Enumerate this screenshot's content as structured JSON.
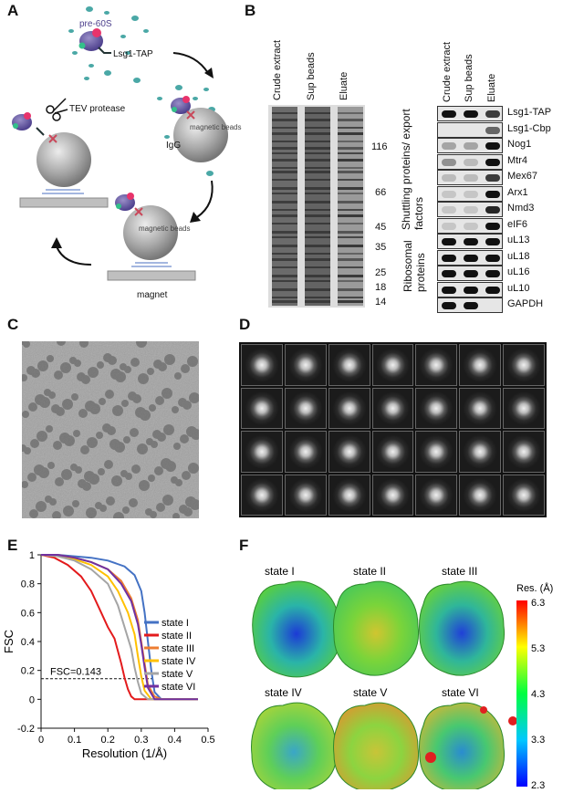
{
  "panel_labels": {
    "a": "A",
    "b": "B",
    "c": "C",
    "d": "D",
    "e": "E",
    "f": "F"
  },
  "panelA": {
    "pre60s": "pre-60S",
    "bait": "Lsg1-TAP",
    "igg": "IgG",
    "beads": "magnetic beads",
    "tev": "TEV protease",
    "magnet": "magnet"
  },
  "panelB": {
    "gel_lanes": [
      "Crude extract",
      "Sup beads",
      "Eluate"
    ],
    "markers": [
      "116",
      "66",
      "45",
      "35",
      "25",
      "18",
      "14"
    ],
    "wb_lanes": [
      "Crude extract",
      "Sup beads",
      "Eluate"
    ],
    "rows": [
      {
        "label": "Lsg1-TAP",
        "bands": [
          1,
          1,
          0.8
        ]
      },
      {
        "label": "Lsg1-Cbp",
        "bands": [
          0,
          0,
          0.6
        ]
      },
      {
        "label": "Nog1",
        "bands": [
          0.3,
          0.3,
          1
        ]
      },
      {
        "label": "Mtr4",
        "bands": [
          0.4,
          0.2,
          1
        ]
      },
      {
        "label": "Mex67",
        "bands": [
          0.2,
          0.2,
          0.8
        ]
      },
      {
        "label": "Arx1",
        "bands": [
          0.1,
          0.1,
          1
        ]
      },
      {
        "label": "Nmd3",
        "bands": [
          0.1,
          0.1,
          0.9
        ]
      },
      {
        "label": "eIF6",
        "bands": [
          0.1,
          0.1,
          1
        ]
      },
      {
        "label": "uL13",
        "bands": [
          1,
          1,
          1
        ]
      },
      {
        "label": "uL18",
        "bands": [
          1,
          1,
          1
        ]
      },
      {
        "label": "uL16",
        "bands": [
          1,
          1,
          1
        ]
      },
      {
        "label": "uL10",
        "bands": [
          1,
          1,
          1
        ]
      },
      {
        "label": "GAPDH",
        "bands": [
          1,
          1,
          0
        ]
      }
    ],
    "group1": "Shuttling proteins/ export factors",
    "group2": "Ribosomal proteins"
  },
  "panelE": {
    "chart_data": {
      "type": "line",
      "xlabel": "Resolution (1/Å)",
      "ylabel": "FSC",
      "xlim": [
        0,
        0.5
      ],
      "ylim": [
        -0.2,
        1
      ],
      "xticks": [
        0,
        0.1,
        0.2,
        0.3,
        0.4,
        0.5
      ],
      "yticks": [
        -0.2,
        0,
        0.2,
        0.4,
        0.6,
        0.8,
        1
      ],
      "threshold": 0.143,
      "threshold_label": "FSC=0.143",
      "series": [
        {
          "name": "state I",
          "color": "#4472c4",
          "x": [
            0,
            0.05,
            0.1,
            0.15,
            0.2,
            0.25,
            0.28,
            0.3,
            0.31,
            0.32,
            0.33,
            0.34,
            0.36,
            0.4,
            0.45,
            0.47
          ],
          "y": [
            1,
            1,
            0.99,
            0.98,
            0.96,
            0.92,
            0.86,
            0.75,
            0.6,
            0.4,
            0.2,
            0.05,
            0,
            0,
            0,
            0
          ]
        },
        {
          "name": "state II",
          "color": "#e31a1c",
          "x": [
            0,
            0.04,
            0.08,
            0.12,
            0.15,
            0.18,
            0.2,
            0.22,
            0.24,
            0.25,
            0.26,
            0.27,
            0.28,
            0.3,
            0.35,
            0.4,
            0.45,
            0.47
          ],
          "y": [
            1,
            0.98,
            0.93,
            0.85,
            0.75,
            0.6,
            0.5,
            0.42,
            0.25,
            0.15,
            0.07,
            0.02,
            0,
            0,
            0,
            0,
            0,
            0
          ]
        },
        {
          "name": "state III",
          "color": "#ed7d31",
          "x": [
            0,
            0.05,
            0.1,
            0.15,
            0.2,
            0.24,
            0.27,
            0.29,
            0.3,
            0.31,
            0.32,
            0.34,
            0.36,
            0.4,
            0.45,
            0.47
          ],
          "y": [
            1,
            1,
            0.98,
            0.95,
            0.9,
            0.82,
            0.7,
            0.55,
            0.4,
            0.25,
            0.1,
            0.02,
            0,
            0,
            0,
            0
          ]
        },
        {
          "name": "state IV",
          "color": "#ffc000",
          "x": [
            0,
            0.05,
            0.1,
            0.15,
            0.2,
            0.23,
            0.26,
            0.28,
            0.29,
            0.3,
            0.31,
            0.33,
            0.36,
            0.4,
            0.45,
            0.47
          ],
          "y": [
            1,
            0.99,
            0.97,
            0.93,
            0.85,
            0.75,
            0.6,
            0.45,
            0.3,
            0.16,
            0.06,
            0,
            0,
            0,
            0,
            0
          ]
        },
        {
          "name": "state V",
          "color": "#a5a5a5",
          "x": [
            0,
            0.05,
            0.1,
            0.15,
            0.2,
            0.23,
            0.25,
            0.27,
            0.28,
            0.29,
            0.3,
            0.32,
            0.35,
            0.4,
            0.45,
            0.47
          ],
          "y": [
            1,
            0.99,
            0.96,
            0.9,
            0.8,
            0.65,
            0.5,
            0.35,
            0.22,
            0.12,
            0.04,
            0,
            0,
            0,
            0,
            0
          ]
        },
        {
          "name": "state VI",
          "color": "#7030a0",
          "x": [
            0,
            0.05,
            0.1,
            0.15,
            0.2,
            0.24,
            0.27,
            0.29,
            0.3,
            0.31,
            0.32,
            0.34,
            0.36,
            0.4,
            0.45,
            0.47
          ],
          "y": [
            1,
            1,
            0.98,
            0.95,
            0.9,
            0.8,
            0.68,
            0.52,
            0.38,
            0.22,
            0.08,
            0,
            0,
            0,
            0,
            0
          ]
        }
      ]
    }
  },
  "panelF": {
    "states": [
      "state I",
      "state II",
      "state III",
      "state IV",
      "state V",
      "state VI"
    ],
    "colorbar_title": "Res. (Å)",
    "colorbar_ticks": [
      "6.3",
      "5.3",
      "4.3",
      "3.3",
      "2.3"
    ]
  }
}
